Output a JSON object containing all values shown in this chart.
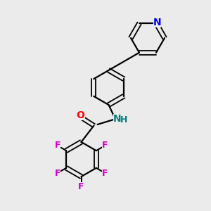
{
  "background_color": "#ebebeb",
  "bond_color": "#000000",
  "nitrogen_color": "#0000ff",
  "oxygen_color": "#ff0000",
  "fluorine_color": "#cc00cc",
  "nh_n_color": "#008080",
  "nh_h_color": "#008080",
  "figsize": [
    3.0,
    3.0
  ],
  "dpi": 100,
  "xlim": [
    0,
    10
  ],
  "ylim": [
    0,
    10
  ]
}
